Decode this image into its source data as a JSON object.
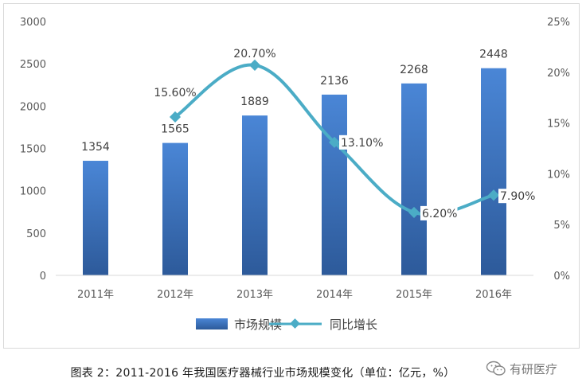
{
  "chart_data": {
    "type": "bar",
    "categories": [
      "2011年",
      "2012年",
      "2013年",
      "2014年",
      "2015年",
      "2016年"
    ],
    "series": [
      {
        "name": "市场规模",
        "type": "bar",
        "axis": "left",
        "values": [
          1354,
          1565,
          1889,
          2136,
          2268,
          2448
        ],
        "labels": [
          "1354",
          "1565",
          "1889",
          "2136",
          "2268",
          "2448"
        ]
      },
      {
        "name": "同比增长",
        "type": "line",
        "axis": "right",
        "values": [
          null,
          15.6,
          20.7,
          13.1,
          6.2,
          7.9
        ],
        "labels": [
          "",
          "15.60%",
          "20.70%",
          "13.10%",
          "6.20%",
          "7.90%"
        ]
      }
    ],
    "ylim": [
      0,
      3000
    ],
    "y_ticks": [
      "0",
      "500",
      "1000",
      "1500",
      "2000",
      "2500",
      "3000"
    ],
    "y2lim": [
      0,
      25
    ],
    "y2_ticks": [
      "0%",
      "5%",
      "10%",
      "15%",
      "20%",
      "25%"
    ],
    "grid": false,
    "legend": "bottom-center",
    "colors": {
      "bar_top": "#4a86d6",
      "bar_bottom": "#2d5a9a",
      "line": "#4bacc6"
    }
  },
  "caption": "图表 2：2011-2016 年我国医疗器械行业市场规模变化（单位：亿元，%）",
  "watermark": {
    "text": "有研医疗",
    "icon": "wechat-icon"
  }
}
